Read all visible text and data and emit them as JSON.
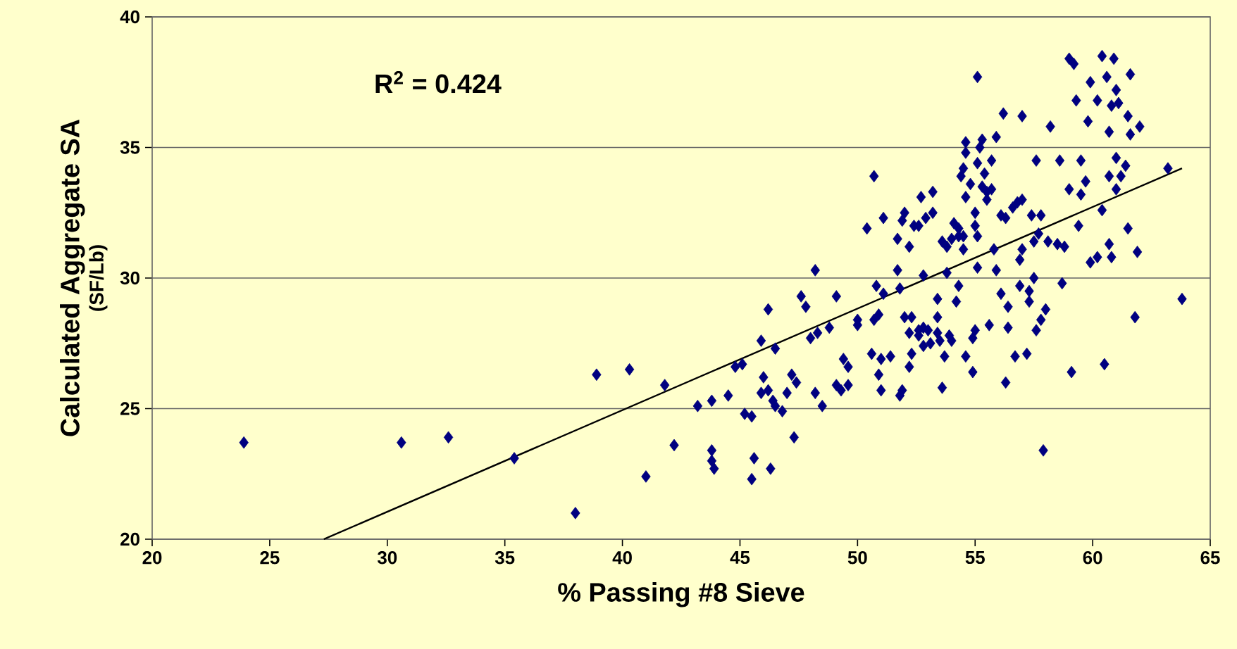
{
  "chart_data": {
    "type": "scatter",
    "xlabel": "% Passing #8 Sieve",
    "ylabel": "Calculated Aggregate SA",
    "subtitle": "(SF/Lb)",
    "annotations": [
      "R$^{2}$ = 0.424"
    ],
    "xlim": [
      20,
      65
    ],
    "xticks": [
      20,
      25,
      30,
      35,
      40,
      45,
      50,
      55,
      60,
      65
    ],
    "ylim": [
      20,
      40
    ],
    "yticks": [
      20,
      25,
      30,
      35,
      40
    ],
    "grid": "y",
    "legend": false,
    "marker": "diamond",
    "series": [
      {
        "color": "#000080",
        "x": [
          23.9,
          30.6,
          32.6,
          35.4,
          38.0,
          38.9,
          40.3,
          41.0,
          41.8,
          42.2,
          43.2,
          43.8,
          43.8,
          43.8,
          43.9,
          44.5,
          44.8,
          45.1,
          45.2,
          45.5,
          45.5,
          45.6,
          45.9,
          45.9,
          46.0,
          46.2,
          46.2,
          46.3,
          46.4,
          46.5,
          46.5,
          46.8,
          47.0,
          47.2,
          47.3,
          47.4,
          47.6,
          47.8,
          48.0,
          48.2,
          48.2,
          48.3,
          48.5,
          48.8,
          49.1,
          49.1,
          49.3,
          49.4,
          49.6,
          49.6,
          50.0,
          50.0,
          50.4,
          50.6,
          50.7,
          50.7,
          50.8,
          50.9,
          50.9,
          51.0,
          51.0,
          51.1,
          51.1,
          51.4,
          51.7,
          51.7,
          51.8,
          51.8,
          51.9,
          51.9,
          52.0,
          52.0,
          52.2,
          52.2,
          52.2,
          52.3,
          52.3,
          52.4,
          52.6,
          52.6,
          52.6,
          52.7,
          52.8,
          52.8,
          52.8,
          52.9,
          53.0,
          53.1,
          53.2,
          53.2,
          53.4,
          53.4,
          53.4,
          53.5,
          53.6,
          53.6,
          53.7,
          53.8,
          53.8,
          53.9,
          54.0,
          54.0,
          54.1,
          54.2,
          54.3,
          54.3,
          54.3,
          54.4,
          54.5,
          54.5,
          54.5,
          54.6,
          54.6,
          54.6,
          54.6,
          54.8,
          54.9,
          54.9,
          55.0,
          55.0,
          55.0,
          55.1,
          55.1,
          55.1,
          55.1,
          55.2,
          55.3,
          55.3,
          55.4,
          55.5,
          55.5,
          55.6,
          55.7,
          55.7,
          55.8,
          55.9,
          55.9,
          56.1,
          56.1,
          56.2,
          56.3,
          56.3,
          56.4,
          56.4,
          56.6,
          56.7,
          56.8,
          56.9,
          56.9,
          57.0,
          57.0,
          57.0,
          57.2,
          57.3,
          57.3,
          57.4,
          57.5,
          57.5,
          57.6,
          57.6,
          57.7,
          57.8,
          57.8,
          57.9,
          58.0,
          58.1,
          58.2,
          58.5,
          58.6,
          58.7,
          58.8,
          59.0,
          59.0,
          59.1,
          59.2,
          59.3,
          59.4,
          59.5,
          59.5,
          59.7,
          59.8,
          59.9,
          59.9,
          60.2,
          60.2,
          60.4,
          60.4,
          60.5,
          60.6,
          60.7,
          60.7,
          60.7,
          60.8,
          60.8,
          60.9,
          61.0,
          61.0,
          61.0,
          61.1,
          61.2,
          61.4,
          61.5,
          61.5,
          61.6,
          61.6,
          61.8,
          61.9,
          62.0,
          63.2,
          63.8
        ],
        "values": [
          23.7,
          23.7,
          23.9,
          23.1,
          21.0,
          26.3,
          26.5,
          22.4,
          25.9,
          23.6,
          25.1,
          25.3,
          23.4,
          23.0,
          22.7,
          25.5,
          26.6,
          26.7,
          24.8,
          24.7,
          22.3,
          23.1,
          27.6,
          25.6,
          26.2,
          25.7,
          28.8,
          22.7,
          25.3,
          25.1,
          27.3,
          24.9,
          25.6,
          26.3,
          23.9,
          26.0,
          29.3,
          28.9,
          27.7,
          30.3,
          25.6,
          27.9,
          25.1,
          28.1,
          29.3,
          25.9,
          25.7,
          26.9,
          25.9,
          26.6,
          28.4,
          28.2,
          31.9,
          27.1,
          33.9,
          28.4,
          29.7,
          26.3,
          28.6,
          26.9,
          25.7,
          29.4,
          32.3,
          27.0,
          30.3,
          31.5,
          29.6,
          25.5,
          25.7,
          32.2,
          32.5,
          28.5,
          27.9,
          31.2,
          26.6,
          28.5,
          27.1,
          32.0,
          32.0,
          28.0,
          27.8,
          33.1,
          28.1,
          30.1,
          27.4,
          32.3,
          28.0,
          27.5,
          32.5,
          33.3,
          28.5,
          29.2,
          27.9,
          27.6,
          25.8,
          31.4,
          27.0,
          31.2,
          30.2,
          27.8,
          27.6,
          31.5,
          32.1,
          29.1,
          29.7,
          31.6,
          31.9,
          33.9,
          31.6,
          31.1,
          34.2,
          35.2,
          34.8,
          33.1,
          27.0,
          33.6,
          26.4,
          27.7,
          28.0,
          32.5,
          32.0,
          31.6,
          30.4,
          37.7,
          34.4,
          35.0,
          33.5,
          35.3,
          34.0,
          33.0,
          33.3,
          28.2,
          33.4,
          34.5,
          31.1,
          35.4,
          30.3,
          29.4,
          32.4,
          36.3,
          26.0,
          32.3,
          28.9,
          28.1,
          32.7,
          27.0,
          32.9,
          30.7,
          29.7,
          31.1,
          33.0,
          36.2,
          27.1,
          29.5,
          29.1,
          32.4,
          31.4,
          30.0,
          34.5,
          28.0,
          31.7,
          28.4,
          32.4,
          23.4,
          28.8,
          31.4,
          35.8,
          31.3,
          34.5,
          29.8,
          31.2,
          38.4,
          33.4,
          26.4,
          38.2,
          36.8,
          32.0,
          33.2,
          34.5,
          33.7,
          36.0,
          37.5,
          30.6,
          36.8,
          30.8,
          38.5,
          32.6,
          26.7,
          37.7,
          31.3,
          35.6,
          33.9,
          36.6,
          30.8,
          38.4,
          34.6,
          33.4,
          37.2,
          36.7,
          33.9,
          34.3,
          36.2,
          31.9,
          37.8,
          35.5,
          28.5,
          31.0,
          35.8,
          34.2,
          29.2
        ]
      },
      {
        "type": "line",
        "color": "#000000",
        "marker": "none",
        "x": [
          27.3,
          63.8
        ],
        "values": [
          20,
          34.2
        ]
      }
    ]
  }
}
